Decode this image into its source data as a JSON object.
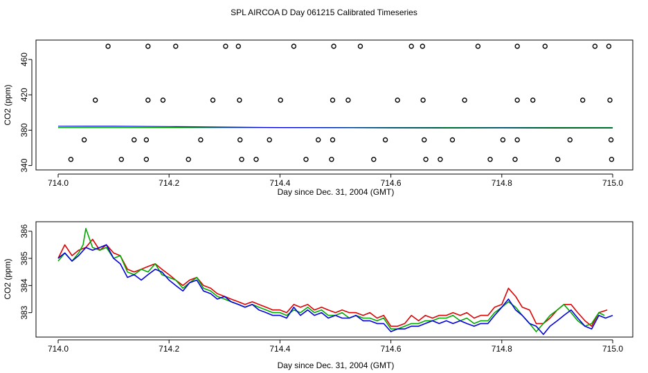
{
  "title": "SPL AIRCOA D  Day 061215  Calibrated Timeseries",
  "colors": {
    "red": "#dd0000",
    "green": "#00aa00",
    "blue": "#0000dd",
    "axis": "#000000"
  },
  "chart_data": [
    {
      "type": "scatter",
      "xlabel": "Day since Dec. 31, 2004 (GMT)",
      "ylabel": "CO2 (ppm)",
      "xlim": [
        714.0,
        715.0
      ],
      "ylim": [
        335,
        482
      ],
      "xticks": [
        714.0,
        714.2,
        714.4,
        714.6,
        714.8,
        715.0
      ],
      "xtick_labels": [
        "714.0",
        "714.2",
        "714.4",
        "714.6",
        "714.8",
        "715.0"
      ],
      "yticks": [
        340,
        380,
        420,
        460
      ],
      "ytick_labels": [
        "340",
        "380",
        "420",
        "460"
      ],
      "grid": false,
      "series": [
        {
          "color": "red",
          "x": [
            714.0,
            715.0
          ],
          "y": [
            383,
            383
          ]
        },
        {
          "color": "green",
          "x": [
            714.0,
            715.0
          ],
          "y": [
            383,
            383
          ]
        },
        {
          "color": "blue",
          "x": [
            714.0,
            714.1,
            714.2,
            714.3,
            714.4,
            714.5,
            714.6,
            714.7,
            714.8,
            714.9,
            715.0
          ],
          "y": [
            384.5,
            384.6,
            384,
            383.5,
            383,
            382.8,
            382.6,
            382.5,
            382.6,
            382.4,
            382.5
          ]
        }
      ],
      "points": {
        "x": [
          714.09,
          714.162,
          714.212,
          714.302,
          714.325,
          714.425,
          714.497,
          714.545,
          714.637,
          714.657,
          714.757,
          714.828,
          714.878,
          714.968,
          714.993,
          714.067,
          714.162,
          714.189,
          714.279,
          714.327,
          714.401,
          714.495,
          714.523,
          714.612,
          714.658,
          714.733,
          714.828,
          714.856,
          714.946,
          714.995,
          714.047,
          714.137,
          714.159,
          714.257,
          714.328,
          714.381,
          714.469,
          714.495,
          714.59,
          714.66,
          714.711,
          714.802,
          714.828,
          714.923,
          714.997,
          714.023,
          714.114,
          714.159,
          714.235,
          714.331,
          714.357,
          714.447,
          714.493,
          714.569,
          714.663,
          714.689,
          714.779,
          714.824,
          714.901,
          714.998
        ],
        "y": [
          475,
          475,
          475,
          475,
          475,
          475,
          475,
          475,
          475,
          475,
          475,
          475,
          475,
          475,
          475,
          414,
          414,
          414,
          414,
          414,
          414,
          414,
          414,
          414,
          414,
          414,
          414,
          414,
          414,
          414,
          369,
          369,
          369,
          369,
          369,
          369,
          369,
          369,
          369,
          369,
          369,
          369,
          369,
          369,
          369,
          347,
          347,
          347,
          347,
          347,
          347,
          347,
          347,
          347,
          347,
          347,
          347,
          347,
          347,
          347
        ]
      }
    },
    {
      "type": "line",
      "xlabel": "Day since Dec. 31, 2004 (GMT)",
      "ylabel": "CO2 (ppm)",
      "xlim": [
        714.0,
        715.0
      ],
      "ylim": [
        382.1,
        386.35
      ],
      "xticks": [
        714.0,
        714.2,
        714.4,
        714.6,
        714.8,
        715.0
      ],
      "xtick_labels": [
        "714.0",
        "714.2",
        "714.4",
        "714.6",
        "714.8",
        "715.0"
      ],
      "yticks": [
        383,
        384,
        385,
        386
      ],
      "ytick_labels": [
        "383",
        "384",
        "385",
        "386"
      ],
      "grid": false,
      "series": [
        {
          "color": "red",
          "x": [
            714.0,
            714.012,
            714.025,
            714.037,
            714.05,
            714.062,
            714.075,
            714.087,
            714.1,
            714.112,
            714.125,
            714.137,
            714.15,
            714.162,
            714.175,
            714.187,
            714.2,
            714.212,
            714.225,
            714.237,
            714.25,
            714.262,
            714.275,
            714.287,
            714.3,
            714.312,
            714.325,
            714.337,
            714.35,
            714.362,
            714.375,
            714.387,
            714.4,
            714.412,
            714.425,
            714.437,
            714.45,
            714.462,
            714.475,
            714.487,
            714.5,
            714.512,
            714.525,
            714.537,
            714.55,
            714.562,
            714.575,
            714.587,
            714.6,
            714.612,
            714.625,
            714.637,
            714.65,
            714.662,
            714.675,
            714.687,
            714.7,
            714.712,
            714.725,
            714.737,
            714.75,
            714.762,
            714.775,
            714.787,
            714.8,
            714.812,
            714.825,
            714.837,
            714.85,
            714.862,
            714.875,
            714.887,
            714.9,
            714.912,
            714.925,
            714.937,
            714.95,
            714.962,
            714.975,
            714.99
          ],
          "y": [
            385.0,
            385.5,
            385.1,
            385.3,
            385.4,
            385.7,
            385.3,
            385.5,
            385.2,
            385.1,
            384.6,
            384.5,
            384.6,
            384.7,
            384.8,
            384.6,
            384.4,
            384.2,
            384.0,
            384.2,
            384.3,
            384.0,
            383.9,
            383.7,
            383.6,
            383.5,
            383.4,
            383.3,
            383.4,
            383.3,
            383.2,
            383.1,
            383.1,
            383.0,
            383.3,
            383.2,
            383.3,
            383.1,
            383.2,
            383.1,
            383.0,
            383.1,
            383.0,
            383.0,
            382.9,
            383.0,
            382.8,
            382.9,
            382.5,
            382.5,
            382.6,
            382.9,
            382.7,
            382.9,
            382.8,
            382.9,
            382.9,
            383.0,
            382.9,
            383.0,
            382.8,
            382.9,
            382.9,
            383.2,
            383.3,
            383.9,
            383.6,
            383.2,
            383.1,
            382.6,
            382.6,
            382.8,
            383.1,
            383.3,
            383.3,
            383.0,
            382.7,
            382.5,
            383.0,
            383.1
          ]
        },
        {
          "color": "green",
          "x": [
            714.0,
            714.012,
            714.025,
            714.037,
            714.045,
            714.05,
            714.062,
            714.075,
            714.087,
            714.1,
            714.112,
            714.125,
            714.137,
            714.15,
            714.162,
            714.175,
            714.187,
            714.2,
            714.212,
            714.225,
            714.237,
            714.25,
            714.262,
            714.275,
            714.287,
            714.3,
            714.312,
            714.325,
            714.337,
            714.35,
            714.362,
            714.375,
            714.387,
            714.4,
            714.412,
            714.425,
            714.437,
            714.45,
            714.462,
            714.475,
            714.487,
            714.5,
            714.512,
            714.525,
            714.537,
            714.55,
            714.562,
            714.575,
            714.587,
            714.6,
            714.612,
            714.625,
            714.637,
            714.65,
            714.662,
            714.675,
            714.687,
            714.7,
            714.712,
            714.725,
            714.737,
            714.75,
            714.762,
            714.775,
            714.787,
            714.8,
            714.812,
            714.825,
            714.837,
            714.85,
            714.862,
            714.875,
            714.887,
            714.9,
            714.912,
            714.925,
            714.937,
            714.95,
            714.962,
            714.975,
            714.985
          ],
          "y": [
            384.9,
            385.2,
            384.9,
            385.2,
            385.5,
            386.1,
            385.4,
            385.3,
            385.4,
            385.0,
            385.1,
            384.5,
            384.4,
            384.6,
            384.5,
            384.8,
            384.4,
            384.3,
            384.2,
            383.9,
            384.1,
            384.3,
            383.9,
            383.8,
            383.6,
            383.5,
            383.4,
            383.3,
            383.2,
            383.3,
            383.2,
            383.1,
            383.0,
            383.0,
            382.9,
            383.1,
            383.0,
            383.2,
            383.0,
            383.1,
            382.9,
            382.9,
            383.0,
            382.8,
            382.9,
            382.8,
            382.8,
            382.7,
            382.8,
            382.4,
            382.4,
            382.5,
            382.6,
            382.6,
            382.7,
            382.7,
            382.8,
            382.8,
            382.9,
            382.7,
            382.8,
            382.6,
            382.7,
            382.7,
            383.0,
            383.2,
            383.4,
            383.2,
            382.9,
            382.6,
            382.3,
            382.6,
            382.9,
            383.1,
            383.3,
            383.0,
            382.7,
            382.5,
            382.6,
            383.0,
            382.9
          ]
        },
        {
          "color": "blue",
          "x": [
            714.0,
            714.012,
            714.025,
            714.037,
            714.05,
            714.062,
            714.075,
            714.087,
            714.1,
            714.112,
            714.125,
            714.137,
            714.15,
            714.162,
            714.175,
            714.187,
            714.2,
            714.212,
            714.225,
            714.237,
            714.25,
            714.262,
            714.275,
            714.287,
            714.3,
            714.312,
            714.325,
            714.337,
            714.35,
            714.362,
            714.375,
            714.387,
            714.4,
            714.412,
            714.425,
            714.437,
            714.45,
            714.462,
            714.475,
            714.487,
            714.5,
            714.512,
            714.525,
            714.537,
            714.55,
            714.562,
            714.575,
            714.587,
            714.6,
            714.612,
            714.625,
            714.637,
            714.65,
            714.662,
            714.675,
            714.687,
            714.7,
            714.712,
            714.725,
            714.737,
            714.75,
            714.762,
            714.775,
            714.787,
            714.8,
            714.812,
            714.825,
            714.837,
            714.85,
            714.862,
            714.875,
            714.887,
            714.9,
            714.912,
            714.925,
            714.937,
            714.95,
            714.962,
            714.975,
            714.987,
            715.0
          ],
          "y": [
            385.0,
            385.2,
            384.9,
            385.1,
            385.4,
            385.3,
            385.4,
            385.5,
            385.0,
            384.8,
            384.3,
            384.4,
            384.2,
            384.4,
            384.6,
            384.5,
            384.2,
            384.0,
            383.8,
            384.1,
            384.2,
            383.8,
            383.7,
            383.5,
            383.6,
            383.4,
            383.3,
            383.2,
            383.3,
            383.1,
            383.0,
            382.9,
            382.9,
            382.8,
            383.2,
            382.9,
            383.1,
            382.9,
            383.0,
            382.8,
            382.9,
            382.8,
            382.8,
            382.9,
            382.7,
            382.7,
            382.6,
            382.6,
            382.3,
            382.4,
            382.4,
            382.5,
            382.5,
            382.6,
            382.7,
            382.6,
            382.7,
            382.6,
            382.7,
            382.6,
            382.5,
            382.6,
            382.6,
            382.9,
            383.2,
            383.5,
            383.1,
            382.9,
            382.6,
            382.5,
            382.2,
            382.5,
            382.7,
            382.9,
            383.1,
            382.8,
            382.5,
            382.4,
            382.9,
            382.8,
            382.9
          ]
        }
      ]
    }
  ]
}
